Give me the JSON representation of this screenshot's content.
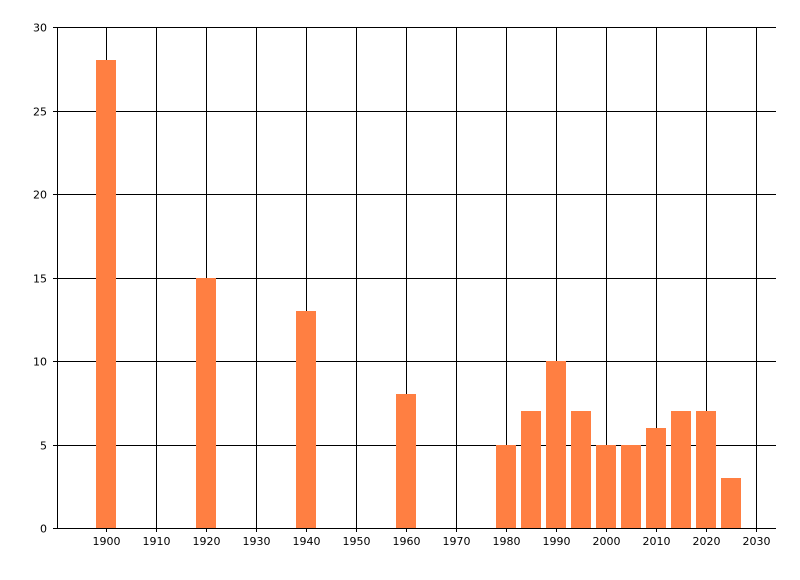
{
  "chart_data": {
    "type": "bar",
    "title": "",
    "xlabel": "",
    "ylabel": "",
    "x": [
      1900,
      1920,
      1940,
      1960,
      1980,
      1985,
      1990,
      1995,
      2000,
      2005,
      2010,
      2015,
      2020,
      2025
    ],
    "values": [
      28,
      15,
      13,
      8,
      5,
      7,
      10,
      7,
      5,
      5,
      6,
      7,
      7,
      3
    ],
    "bar_width_years": 4,
    "xlim": [
      1890,
      2035
    ],
    "ylim": [
      0,
      30
    ],
    "xticks": [
      1900,
      1910,
      1920,
      1930,
      1940,
      1950,
      1960,
      1970,
      1980,
      1990,
      2000,
      2010,
      2020,
      2030
    ],
    "yticks": [
      0,
      5,
      10,
      15,
      20,
      25,
      30
    ],
    "grid": true,
    "legend": "none",
    "bar_color": "#ff7f42",
    "grid_color": "#000000"
  }
}
